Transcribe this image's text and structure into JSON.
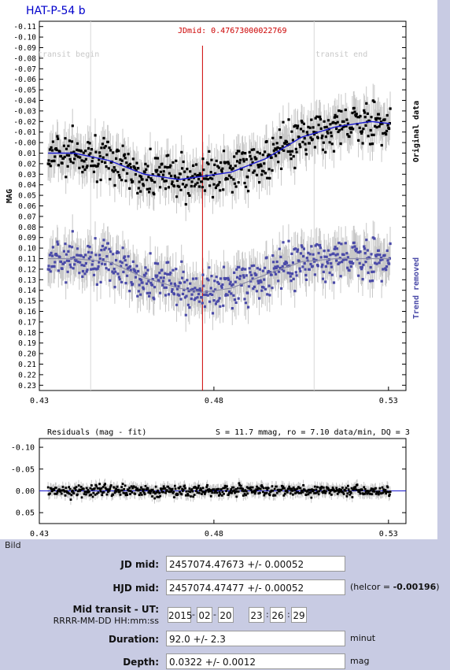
{
  "title": "HAT-P-54 b",
  "jdmid_label": "JDmid: 0.47673000022769",
  "transit_begin": "transit begin",
  "transit_end": "transit end",
  "y_axis_label": "MAG",
  "right_label_top": "Original data",
  "right_label_bottom": "Trend removed",
  "residuals_title": "Residuals (mag - fit)",
  "residuals_stats": "S = 11.7 mmag, ro = 7.10 data/min, DQ = 3",
  "bild_label": "Bild",
  "colors": {
    "title": "#0000cc",
    "blue_series": "#4a4aa8",
    "jdmid_line": "#cc0000",
    "panel_bg": "#c8cbe3"
  },
  "form": {
    "jd_mid_label": "JD mid:",
    "jd_mid_value": "2457074.47673 +/- 0.00052",
    "hjd_mid_label": "HJD mid:",
    "hjd_mid_value": "2457074.47477 +/- 0.00052",
    "helcor_prefix": "(helcor = ",
    "helcor_value": "-0.00196",
    "helcor_suffix": ")",
    "mid_transit_label": "Mid transit - UT:",
    "mid_transit_format": "RRRR-MM-DD HH:mm:ss",
    "ut_year": "2015",
    "ut_month": "02",
    "ut_day": "20",
    "ut_hour": "23",
    "ut_minute": "26",
    "ut_second": "29",
    "duration_label": "Duration:",
    "duration_value": "92.0 +/- 2.3",
    "duration_unit": "minut",
    "depth_label": "Depth:",
    "depth_value": "0.0322 +/- 0.0012",
    "depth_unit": "mag"
  },
  "chart_data": [
    {
      "type": "scatter",
      "title": "HAT-P-54 b",
      "ylabel": "MAG",
      "xlim": [
        0.43,
        0.535
      ],
      "ylim": [
        -0.115,
        0.235
      ],
      "y_inverted": true,
      "x_ticks": [
        "0.43",
        "0.48",
        "0.53"
      ],
      "y_ticks": [
        "-0.11",
        "-0.10",
        "-0.09",
        "-0.08",
        "-0.07",
        "-0.06",
        "-0.05",
        "-0.04",
        "-0.03",
        "-0.02",
        "-0.01",
        "-0.00",
        "0.01",
        "0.02",
        "0.03",
        "0.04",
        "0.05",
        "0.06",
        "0.07",
        "0.08",
        "0.09",
        "0.10",
        "0.11",
        "0.12",
        "0.13",
        "0.14",
        "0.15",
        "0.16",
        "0.17",
        "0.18",
        "0.19",
        "0.20",
        "0.21",
        "0.22",
        "0.23"
      ],
      "jd_mid": 0.47673,
      "transit_begin_x": 0.4447,
      "transit_end_x": 0.5087,
      "series": [
        {
          "name": "Original data",
          "x": [
            0.4325,
            0.44,
            0.45,
            0.46,
            0.47,
            0.4767,
            0.485,
            0.495,
            0.505,
            0.515,
            0.525,
            0.5305
          ],
          "y": [
            0.01,
            0.01,
            0.017,
            0.03,
            0.035,
            0.032,
            0.028,
            0.015,
            -0.005,
            -0.015,
            -0.02,
            -0.018
          ]
        },
        {
          "name": "Trend removed",
          "x": [
            0.4325,
            0.44,
            0.45,
            0.46,
            0.47,
            0.4767,
            0.485,
            0.495,
            0.505,
            0.515,
            0.525,
            0.5305
          ],
          "y": [
            0.11,
            0.11,
            0.113,
            0.128,
            0.138,
            0.142,
            0.138,
            0.125,
            0.113,
            0.11,
            0.11,
            0.11
          ]
        }
      ]
    },
    {
      "type": "scatter",
      "title": "Residuals (mag - fit)",
      "annotation": "S = 11.7 mmag, ro = 7.10 data/min, DQ = 3",
      "xlim": [
        0.43,
        0.535
      ],
      "ylim": [
        -0.12,
        0.075
      ],
      "y_inverted": true,
      "x_ticks": [
        "0.43",
        "0.48",
        "0.53"
      ],
      "y_ticks": [
        "-0.10",
        "-0.05",
        "0.00",
        "0.05"
      ],
      "series": [
        {
          "x": [
            0.4325,
            0.48,
            0.5305
          ],
          "y": [
            0.0,
            0.0,
            0.0
          ]
        }
      ]
    }
  ]
}
